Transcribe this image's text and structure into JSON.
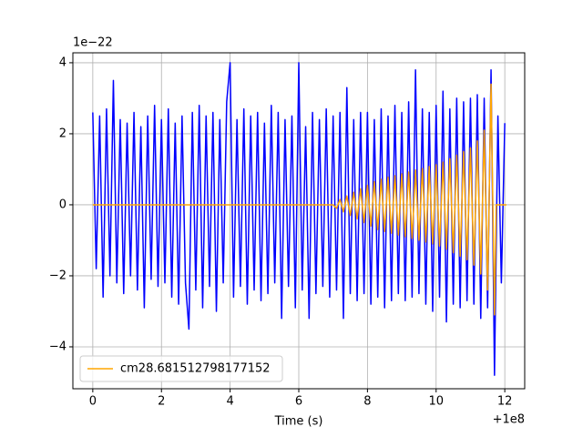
{
  "chart_data": {
    "type": "line",
    "x_label": "Time (s)",
    "y_offset_text": "1e−22",
    "x_offset_text": "+1e8",
    "xlim": [
      -0.58,
      12.58
    ],
    "ylim": [
      -5.18,
      4.28
    ],
    "xticks": [
      0,
      2,
      4,
      6,
      8,
      10,
      12
    ],
    "yticks": [
      {
        "value": -4,
        "label": "−4"
      },
      {
        "value": -2,
        "label": "−2"
      },
      0,
      2,
      4
    ],
    "grid": true,
    "legend": "lower left",
    "series": [
      {
        "color": "#0000ff",
        "x": [
          0,
          0.1,
          0.2,
          0.3,
          0.4,
          0.5,
          0.6,
          0.7,
          0.8,
          0.9,
          1.0,
          1.1,
          1.2,
          1.3,
          1.4,
          1.5,
          1.6,
          1.7,
          1.8,
          1.9,
          2.0,
          2.1,
          2.2,
          2.3,
          2.4,
          2.5,
          2.6,
          2.7,
          2.8,
          2.9,
          3.0,
          3.1,
          3.2,
          3.3,
          3.4,
          3.5,
          3.6,
          3.7,
          3.8,
          3.9,
          4.0,
          4.1,
          4.2,
          4.3,
          4.4,
          4.5,
          4.6,
          4.7,
          4.8,
          4.9,
          5.0,
          5.1,
          5.2,
          5.3,
          5.4,
          5.5,
          5.6,
          5.7,
          5.8,
          5.9,
          6.0,
          6.1,
          6.2,
          6.3,
          6.4,
          6.5,
          6.6,
          6.7,
          6.8,
          6.9,
          7.0,
          7.1,
          7.2,
          7.3,
          7.4,
          7.5,
          7.6,
          7.7,
          7.8,
          7.9,
          8.0,
          8.1,
          8.2,
          8.3,
          8.4,
          8.5,
          8.6,
          8.7,
          8.8,
          8.9,
          9.0,
          9.1,
          9.2,
          9.3,
          9.4,
          9.5,
          9.6,
          9.7,
          9.8,
          9.9,
          10.0,
          10.1,
          10.2,
          10.3,
          10.4,
          10.5,
          10.6,
          10.7,
          10.8,
          10.9,
          11.0,
          11.1,
          11.2,
          11.3,
          11.4,
          11.5,
          11.6,
          11.7,
          11.8,
          11.9,
          12.0
        ],
        "values": [
          2.6,
          -1.8,
          2.5,
          -2.6,
          2.7,
          -2.0,
          3.5,
          -2.2,
          2.4,
          -2.5,
          2.3,
          -2.0,
          2.6,
          -2.4,
          2.2,
          -2.9,
          2.5,
          -2.1,
          2.8,
          -2.3,
          2.4,
          -2.2,
          2.7,
          -2.6,
          2.3,
          -2.8,
          2.5,
          -2.2,
          -3.5,
          2.6,
          -2.4,
          2.8,
          -2.9,
          2.5,
          -2.3,
          2.6,
          -3.0,
          2.4,
          -2.2,
          2.9,
          4.0,
          -2.6,
          2.4,
          -2.3,
          2.7,
          -2.8,
          2.5,
          -2.4,
          2.6,
          -2.7,
          2.3,
          -2.5,
          2.8,
          -2.2,
          2.6,
          -3.2,
          2.4,
          -2.3,
          2.5,
          -2.9,
          4.0,
          -2.4,
          2.2,
          -3.2,
          2.6,
          -2.5,
          2.4,
          -2.3,
          2.7,
          -2.6,
          2.5,
          -2.4,
          2.6,
          -3.2,
          3.3,
          -2.5,
          2.4,
          -2.7,
          2.6,
          -2.5,
          2.6,
          -2.8,
          2.4,
          -2.6,
          2.7,
          -2.9,
          2.5,
          -2.7,
          2.8,
          -2.5,
          2.6,
          -2.7,
          2.9,
          -2.6,
          3.8,
          -2.5,
          2.7,
          -2.8,
          2.6,
          -3.0,
          2.8,
          -2.6,
          3.2,
          -3.3,
          2.7,
          -2.8,
          3.0,
          -2.9,
          2.9,
          -2.7,
          3.0,
          -2.8,
          3.1,
          -3.2,
          3.0,
          -2.9,
          3.8,
          -4.8,
          2.5,
          -2.2,
          2.3
        ]
      },
      {
        "name": "cm28.681512798177152",
        "color": "#ffa500",
        "x": [
          0,
          7.0,
          7.1,
          7.2,
          7.3,
          7.4,
          7.5,
          7.6,
          7.7,
          7.8,
          7.9,
          8.0,
          8.1,
          8.2,
          8.3,
          8.4,
          8.5,
          8.6,
          8.7,
          8.8,
          8.9,
          9.0,
          9.1,
          9.2,
          9.3,
          9.4,
          9.5,
          9.6,
          9.7,
          9.8,
          9.9,
          10.0,
          10.1,
          10.2,
          10.3,
          10.4,
          10.5,
          10.6,
          10.7,
          10.8,
          10.9,
          11.0,
          11.1,
          11.2,
          11.3,
          11.4,
          11.5,
          11.6,
          11.7,
          11.75,
          12.05
        ],
        "values": [
          0,
          0,
          -0.1,
          0.15,
          -0.2,
          0.25,
          -0.3,
          0.35,
          -0.4,
          0.45,
          -0.5,
          0.55,
          -0.6,
          0.65,
          -0.7,
          0.72,
          -0.75,
          0.78,
          -0.8,
          0.82,
          -0.85,
          0.87,
          -0.9,
          0.92,
          -0.95,
          0.98,
          -1.0,
          1.02,
          -1.05,
          1.08,
          -1.1,
          1.13,
          -1.16,
          1.2,
          -1.25,
          1.3,
          -1.35,
          1.4,
          -1.45,
          1.5,
          -1.55,
          1.6,
          -1.7,
          1.8,
          -1.95,
          2.1,
          -2.4,
          3.4,
          -3.1,
          0,
          0
        ]
      }
    ]
  }
}
